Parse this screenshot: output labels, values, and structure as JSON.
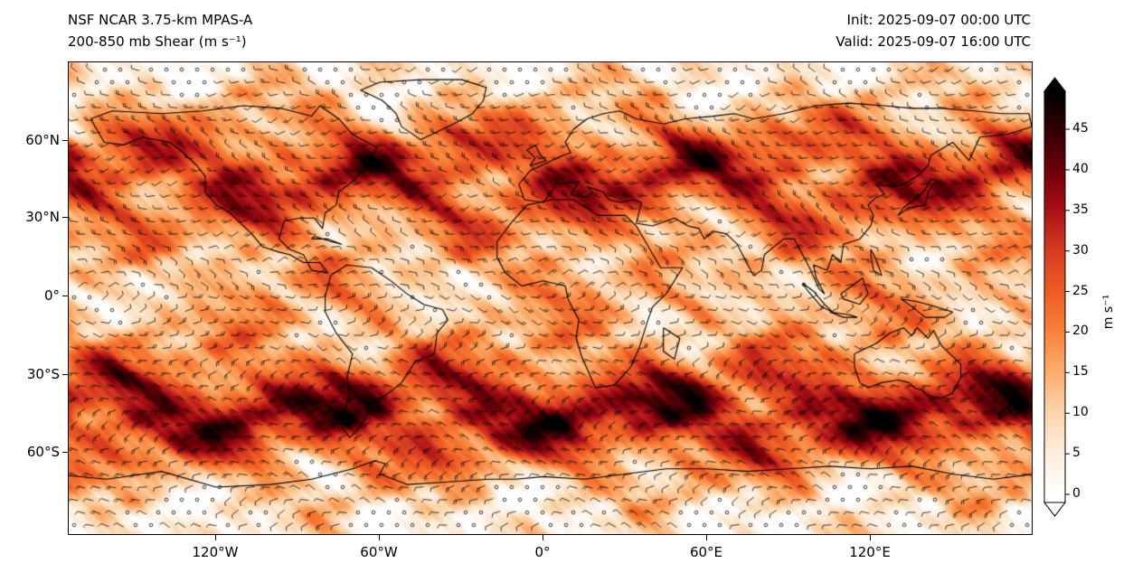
{
  "header": {
    "title_line1": "NSF NCAR 3.75-km MPAS-A",
    "title_line2": "200-850 mb Shear (m s⁻¹)",
    "init_label": "Init: 2025-09-07 00:00 UTC",
    "valid_label": "Valid: 2025-09-07 16:00 UTC"
  },
  "chart_data": {
    "type": "heatmap",
    "title": "200-850 mb Shear (m s⁻¹)",
    "model": "NSF NCAR 3.75-km MPAS-A",
    "init_time": "2025-09-07 00:00 UTC",
    "valid_time": "2025-09-07 16:00 UTC",
    "projection": "global equirectangular (lat/lon)",
    "x_ticks": [
      "120°W",
      "60°W",
      "0°",
      "60°E",
      "120°E"
    ],
    "y_ticks": [
      "60°N",
      "30°N",
      "0°",
      "30°S",
      "60°S"
    ],
    "overlays": [
      "wind barbs",
      "coastlines",
      "calm circles in low-shear regions"
    ],
    "colorbar": {
      "label": "m s⁻¹",
      "ticks": [
        0,
        5,
        10,
        15,
        20,
        25,
        30,
        35,
        40,
        45
      ],
      "range": [
        0,
        50
      ],
      "extend": "both",
      "stops": [
        {
          "value": 0,
          "color": "#ffffff"
        },
        {
          "value": 5,
          "color": "#fdeedd"
        },
        {
          "value": 10,
          "color": "#fbd5ab"
        },
        {
          "value": 15,
          "color": "#fcae6d"
        },
        {
          "value": 20,
          "color": "#f9823a"
        },
        {
          "value": 25,
          "color": "#ef5b24"
        },
        {
          "value": 30,
          "color": "#d73b21"
        },
        {
          "value": 35,
          "color": "#aa1016"
        },
        {
          "value": 40,
          "color": "#6d0009"
        },
        {
          "value": 45,
          "color": "#300003"
        },
        {
          "value": 50,
          "color": "#000000"
        }
      ]
    },
    "field_summary": [
      {
        "region": "NH midlatitude jet 35-60°N",
        "typical_shear_ms": "25-45"
      },
      {
        "region": "SH midlatitude jet 30-60°S",
        "typical_shear_ms": "30-50"
      },
      {
        "region": "tropics 20°S-20°N",
        "typical_shear_ms": "0-20 patchy"
      },
      {
        "region": "subtropical calm zones",
        "typical_shear_ms": "0-10"
      },
      {
        "region": "polar caps",
        "typical_shear_ms": "5-20"
      }
    ]
  }
}
